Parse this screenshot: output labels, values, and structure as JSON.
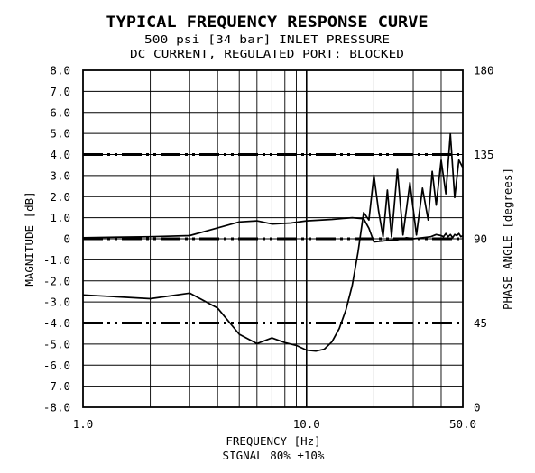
{
  "chart_data": {
    "type": "line",
    "title": "TYPICAL FREQUENCY RESPONSE CURVE",
    "subtitle_line1": "500 psi [34 bar] INLET PRESSURE",
    "subtitle_line2": "DC CURRENT, REGULATED PORT: BLOCKED",
    "xlabel": "FREQUENCY [Hz]",
    "xlabel2": "SIGNAL 80% ±10%",
    "ylabel_left": "MAGNITUDE [dB]",
    "ylabel_right": "PHASE ANGLE [degrees]",
    "x_scale": "log",
    "xlim": [
      1.0,
      50.0
    ],
    "ylim_left": [
      -8.0,
      8.0
    ],
    "ylim_right": [
      0,
      180
    ],
    "grid": true,
    "x_tick_labels": [
      {
        "value": 1.0,
        "label": "1.0"
      },
      {
        "value": 10.0,
        "label": "10.0"
      },
      {
        "value": 50.0,
        "label": "50.0"
      }
    ],
    "x_gridlines": [
      2,
      3,
      4,
      5,
      6,
      7,
      8,
      9,
      10,
      20,
      30,
      40
    ],
    "y_left_ticks": [
      {
        "value": 8,
        "label": "8.0"
      },
      {
        "value": 7,
        "label": "7.0"
      },
      {
        "value": 6,
        "label": "6.0"
      },
      {
        "value": 5,
        "label": "5.0"
      },
      {
        "value": 4,
        "label": "4.0"
      },
      {
        "value": 3,
        "label": "3.0"
      },
      {
        "value": 2,
        "label": "2.0"
      },
      {
        "value": 1,
        "label": "1.0"
      },
      {
        "value": 0,
        "label": "0"
      },
      {
        "value": -1,
        "label": "-1.0"
      },
      {
        "value": -2,
        "label": "-2.0"
      },
      {
        "value": -3,
        "label": "-3.0"
      },
      {
        "value": -4,
        "label": "-4.0"
      },
      {
        "value": -5,
        "label": "-5.0"
      },
      {
        "value": -6,
        "label": "-6.0"
      },
      {
        "value": -7,
        "label": "-7.0"
      },
      {
        "value": -8,
        "label": "-8.0"
      }
    ],
    "y_right_ticks": [
      {
        "value": 180,
        "label": "180"
      },
      {
        "value": 135,
        "label": "135"
      },
      {
        "value": 90,
        "label": "90"
      },
      {
        "value": 45,
        "label": "45"
      },
      {
        "value": 0,
        "label": "0"
      }
    ],
    "reference_lines_left": [
      4,
      0,
      -4
    ],
    "series": [
      {
        "axis": "left",
        "points": [
          [
            1.0,
            0.05
          ],
          [
            2.0,
            0.1
          ],
          [
            3.0,
            0.15
          ],
          [
            5.0,
            0.8
          ],
          [
            6.0,
            0.85
          ],
          [
            7.0,
            0.7
          ],
          [
            8.5,
            0.75
          ],
          [
            10.0,
            0.85
          ],
          [
            13.0,
            0.92
          ],
          [
            16.0,
            1.0
          ],
          [
            18.0,
            0.95
          ],
          [
            19.0,
            0.5
          ],
          [
            20.0,
            -0.15
          ],
          [
            23.0,
            -0.08
          ],
          [
            25.5,
            -0.05
          ],
          [
            28.0,
            0.05
          ],
          [
            30.0,
            0.0
          ],
          [
            33.0,
            0.05
          ],
          [
            36.0,
            0.1
          ],
          [
            38.0,
            0.2
          ],
          [
            40.0,
            0.15
          ],
          [
            41.0,
            0.1
          ],
          [
            42.0,
            0.25
          ],
          [
            43.0,
            0.1
          ],
          [
            44.0,
            0.2
          ],
          [
            45.0,
            0.05
          ],
          [
            46.0,
            0.2
          ],
          [
            47.0,
            0.15
          ],
          [
            48.0,
            0.25
          ],
          [
            49.0,
            0.1
          ],
          [
            50.0,
            0.15
          ]
        ]
      },
      {
        "axis": "right",
        "points": [
          [
            1.0,
            60
          ],
          [
            2.0,
            58
          ],
          [
            3.0,
            61
          ],
          [
            4.0,
            53
          ],
          [
            5.0,
            39
          ],
          [
            6.0,
            34
          ],
          [
            7.0,
            37
          ],
          [
            8.0,
            34.5
          ],
          [
            9.0,
            33
          ],
          [
            10.0,
            30.5
          ],
          [
            11.0,
            30
          ],
          [
            12.0,
            31
          ],
          [
            13.0,
            35
          ],
          [
            14.0,
            42
          ],
          [
            15.0,
            52
          ],
          [
            16.0,
            65
          ],
          [
            17.0,
            83
          ],
          [
            18.0,
            104
          ],
          [
            19.0,
            100
          ],
          [
            20.0,
            124
          ],
          [
            21.0,
            105
          ],
          [
            22.0,
            91
          ],
          [
            23.0,
            116
          ],
          [
            24.0,
            91
          ],
          [
            25.5,
            127
          ],
          [
            27.0,
            92
          ],
          [
            29.0,
            120
          ],
          [
            31.0,
            92
          ],
          [
            33.0,
            117
          ],
          [
            35.0,
            100
          ],
          [
            36.5,
            126
          ],
          [
            38.0,
            108
          ],
          [
            40.0,
            132
          ],
          [
            42.0,
            114
          ],
          [
            44.0,
            146
          ],
          [
            46.0,
            112
          ],
          [
            48.0,
            132
          ],
          [
            50.0,
            128
          ]
        ]
      }
    ]
  }
}
